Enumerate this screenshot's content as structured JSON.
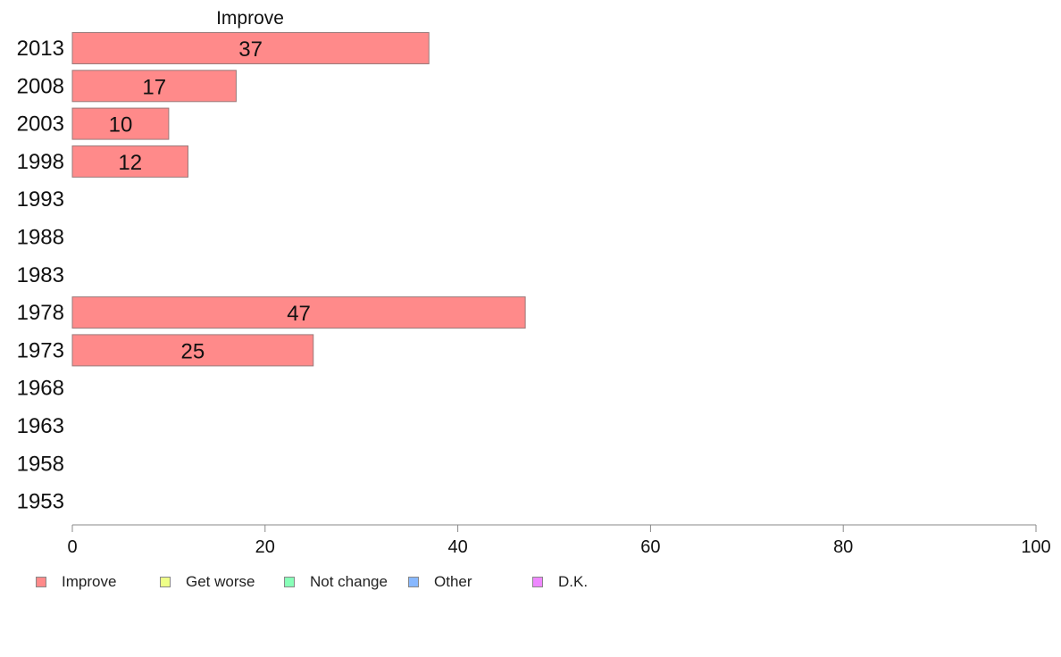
{
  "chart_data": {
    "type": "bar",
    "orientation": "horizontal",
    "title": "Improve",
    "categories": [
      "2013",
      "2008",
      "2003",
      "1998",
      "1993",
      "1988",
      "1983",
      "1978",
      "1973",
      "1968",
      "1963",
      "1958",
      "1953"
    ],
    "series": [
      {
        "name": "Improve",
        "color": "#ff8a8a",
        "values": [
          37,
          17,
          10,
          12,
          null,
          null,
          null,
          47,
          25,
          null,
          null,
          null,
          null
        ]
      }
    ],
    "xlim": [
      0,
      100
    ],
    "xticks": [
      "0",
      "20",
      "40",
      "60",
      "80",
      "100"
    ],
    "grid": false,
    "legend_position": "bottom-left"
  },
  "legend": [
    {
      "label": "Improve",
      "color": "#ff8a8a"
    },
    {
      "label": "Get worse",
      "color": "#eeff88"
    },
    {
      "label": "Not change",
      "color": "#88ffb8"
    },
    {
      "label": "Other",
      "color": "#88b8ff"
    },
    {
      "label": "D.K.",
      "color": "#ee88ff"
    }
  ]
}
